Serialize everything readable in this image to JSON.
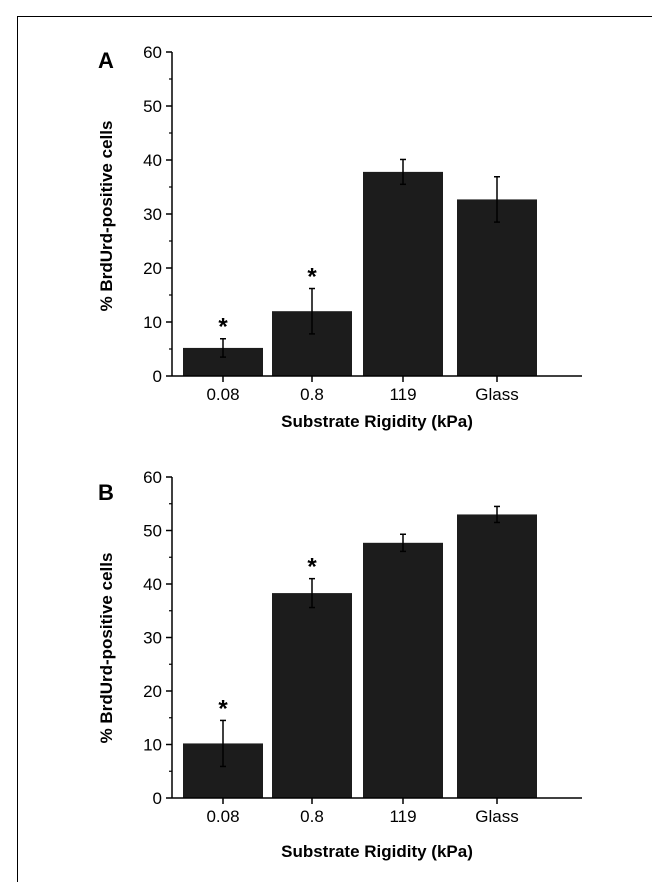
{
  "chart_data": [
    {
      "panel": "A",
      "type": "bar",
      "categories": [
        "0.08",
        "0.8",
        "119",
        "Glass"
      ],
      "series": [
        {
          "values": [
            5.2,
            12.0,
            37.8,
            32.7
          ],
          "error": [
            1.7,
            4.2,
            2.3,
            4.2
          ],
          "annotations": [
            "*",
            "*",
            "",
            ""
          ]
        }
      ],
      "xlabel": "Substrate Rigidity (kPa)",
      "ylabel": "% BrdUrd-positive cells",
      "ylim": [
        0,
        60
      ],
      "yticks": [
        "0",
        "10",
        "20",
        "30",
        "40",
        "50",
        "60"
      ],
      "bar_color": "#1c1c1c",
      "grid": false
    },
    {
      "panel": "B",
      "type": "bar",
      "categories": [
        "0.08",
        "0.8",
        "119",
        "Glass"
      ],
      "series": [
        {
          "values": [
            10.2,
            38.3,
            47.7,
            53.0
          ],
          "error": [
            4.3,
            2.7,
            1.6,
            1.5
          ],
          "annotations": [
            "*",
            "*",
            "",
            ""
          ]
        }
      ],
      "xlabel": "Substrate Rigidity (kPa)",
      "ylabel": "% BrdUrd-positive cells",
      "ylim": [
        0,
        60
      ],
      "yticks": [
        "0",
        "10",
        "20",
        "30",
        "40",
        "50",
        "60"
      ],
      "bar_color": "#1c1c1c",
      "grid": false
    }
  ]
}
